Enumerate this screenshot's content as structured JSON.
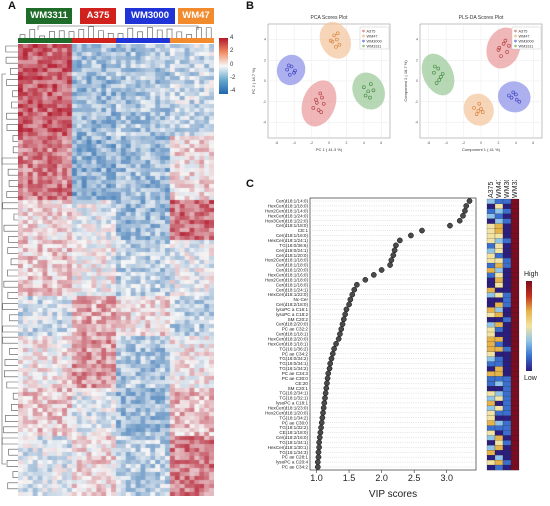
{
  "panels": {
    "a": "A",
    "b": "B",
    "c": "C"
  },
  "heatmap": {
    "groups": [
      {
        "label": "WM3311",
        "color": "#1f6b2a"
      },
      {
        "label": "A375",
        "color": "#d0211c"
      },
      {
        "label": "WM3000",
        "color": "#1f33d6"
      },
      {
        "label": "WM47",
        "color": "#f28a2e"
      }
    ],
    "scale_ticks": [
      "4",
      "2",
      "0",
      "-2",
      "-4"
    ],
    "colors": {
      "high": "#b2182b",
      "mid": "#f7f7f7",
      "low": "#2166ac"
    }
  },
  "pca_plot": {
    "title": "PCA Scores Plot",
    "xlabel": "PC 1 ( 41.3 %)",
    "ylabel": "PC 2 ( 18.7 %)",
    "xticks": [
      "-6",
      "-4",
      "-2",
      "0",
      "2",
      "4",
      "6"
    ],
    "yticks": [
      "-4",
      "-2",
      "0",
      "2",
      "4"
    ],
    "legend": [
      "A375",
      "WM47",
      "WM3000",
      "WM3311"
    ],
    "legend_colors": [
      "#e9999a",
      "#f3c39a",
      "#8a8ee8",
      "#98c896"
    ]
  },
  "plsda_plot": {
    "title": "PLS-DA Scores Plot",
    "xlabel": "Component 1 ( 41 %)",
    "ylabel": "Component 2 ( 18.7 %)",
    "xticks": [
      "-6",
      "-4",
      "-2",
      "0",
      "2",
      "4",
      "6"
    ],
    "yticks": [
      "-4",
      "-2",
      "0",
      "2",
      "4"
    ],
    "legend": [
      "A375",
      "WM47",
      "WM3000",
      "WM3311"
    ],
    "legend_colors": [
      "#e9999a",
      "#f3c39a",
      "#8a8ee8",
      "#98c896"
    ]
  },
  "vip": {
    "column_headers": [
      "A375",
      "WM47",
      "WM3000",
      "WM3311"
    ],
    "colorbar_high": "High",
    "colorbar_low": "Low"
  },
  "chart_data": [
    {
      "type": "scatter",
      "title": "VIP scores",
      "xlabel": "VIP scores",
      "ylabel": "",
      "xlim": [
        0.9,
        3.45
      ],
      "xticks": [
        1.0,
        1.5,
        2.0,
        2.5,
        3.0
      ],
      "categories": [
        "Cer(d18:1/14:0)",
        "HexCer(d18:1/18:0)",
        "Hex2Cer(d18:1/14:0)",
        "HexCer(d18:1/24:0)",
        "Hex3Cer(d18:1/22:0)",
        "Cer(d18:1/18:0)",
        "CE:1",
        "Cer(d18:1/16:0)",
        "HexCer(d18:1/24:1)",
        "TG(16:0/36:6)",
        "Cer(d18:0/24:1)",
        "Cer(d18:1/20:0)",
        "Hex2Cer(d18:1/18:0)",
        "Cer(d18:1/18:0)",
        "Cer(d18:1/20:0)",
        "HexCer(d18:1/16:0)",
        "Hex2Cer(d18:1/18:0)",
        "Cer(d18:1/18:0)",
        "Cer(d18:1/24:1)",
        "HexCer(d18:1/22:0)",
        "Nc-Cer",
        "Cer(d18:2/18:0)",
        "lysoPC a C16:1",
        "lysoPC a C18:2",
        "SM C20:2",
        "Cer(d18:2/20:0)",
        "PC ae C32:2",
        "Cer(d18:1/18:1)",
        "HexCer(d18:2/20:0)",
        "HexCer(d18:1/18:1)",
        "TG(16:1/36:2)",
        "PC ae C34:2",
        "TG(16:0/34:2)",
        "TG(16:0/34:1)",
        "TG(16:1/34:2)",
        "PC ae C34:3",
        "PC ae C30:0",
        "CE:20",
        "SM C20:1",
        "TG(16:2/34:1)",
        "TG(18:1/32:1)",
        "lysoPC a C18:1",
        "HexCer(d18:1/23:0)",
        "Hex2Cer(d18:1/20:0)",
        "TG(18:1/34:2)",
        "PC ae C30:0",
        "TG(18:1/32:2)",
        "CE(18:1/18:0)",
        "Cer(d18:2/16:0)",
        "TG(18:1/34:1)",
        "HexCer(d18:1/30:1)",
        "TG(16:1/34:3)",
        "PC ae C28:1",
        "lysoPC a C20:4",
        "PC ae C34:2"
      ],
      "values": [
        3.35,
        3.3,
        3.28,
        3.25,
        3.2,
        3.05,
        2.62,
        2.45,
        2.28,
        2.22,
        2.2,
        2.18,
        2.15,
        2.13,
        2.0,
        1.88,
        1.75,
        1.62,
        1.58,
        1.55,
        1.52,
        1.5,
        1.46,
        1.44,
        1.42,
        1.4,
        1.38,
        1.36,
        1.34,
        1.3,
        1.27,
        1.25,
        1.23,
        1.21,
        1.2,
        1.18,
        1.17,
        1.16,
        1.15,
        1.14,
        1.13,
        1.12,
        1.11,
        1.1,
        1.09,
        1.08,
        1.07,
        1.06,
        1.05,
        1.04,
        1.04,
        1.03,
        1.03,
        1.02,
        1.02
      ]
    },
    {
      "type": "scatter",
      "title": "PCA Scores Plot",
      "xlabel": "PC 1 ( 41.3 %)",
      "ylabel": "PC 2 ( 18.7 %)",
      "xlim": [
        -7,
        7
      ],
      "ylim": [
        -5.5,
        5.5
      ],
      "series": [
        {
          "name": "A375",
          "x": [
            -1.5,
            -1.0,
            -0.6,
            -1.8,
            -1.2,
            -0.8,
            -1.4,
            -0.9
          ],
          "y": [
            -1.8,
            -1.2,
            -2.2,
            -2.6,
            -2.8,
            -1.6,
            -2.1,
            -3.0
          ]
        },
        {
          "name": "WM47",
          "x": [
            0.4,
            0.9,
            1.2,
            0.6,
            1.0,
            0.2,
            0.8
          ],
          "y": [
            3.8,
            4.0,
            3.5,
            4.4,
            4.6,
            3.9,
            3.3
          ]
        },
        {
          "name": "WM3000",
          "x": [
            -4.8,
            -4.3,
            -3.9,
            -4.5,
            -4.0,
            -4.6
          ],
          "y": [
            1.1,
            1.4,
            1.0,
            0.6,
            0.8,
            1.5
          ]
        },
        {
          "name": "WM3311",
          "x": [
            4.0,
            4.5,
            4.8,
            4.2,
            4.7,
            5.1
          ],
          "y": [
            -0.6,
            -1.0,
            -0.3,
            -1.4,
            -1.6,
            -0.9
          ]
        }
      ]
    },
    {
      "type": "scatter",
      "title": "PLS-DA Scores Plot",
      "xlabel": "Component 1 ( 41 %)",
      "ylabel": "Component 2 ( 18.7 %)",
      "xlim": [
        -7,
        7
      ],
      "ylim": [
        -5.5,
        5.5
      ],
      "series": [
        {
          "name": "A375",
          "x": [
            2.1,
            2.6,
            3.0,
            2.3,
            2.8,
            2.0,
            3.2
          ],
          "y": [
            3.2,
            3.6,
            2.8,
            2.4,
            3.9,
            3.0,
            3.4
          ]
        },
        {
          "name": "WM47",
          "x": [
            -0.8,
            -0.2,
            0.2,
            -0.5,
            0.0,
            -0.3
          ],
          "y": [
            -2.6,
            -2.2,
            -3.0,
            -3.2,
            -2.7,
            -2.9
          ]
        },
        {
          "name": "WM3000",
          "x": [
            3.2,
            3.7,
            4.1,
            3.5,
            4.0,
            4.4
          ],
          "y": [
            -1.4,
            -1.1,
            -1.8,
            -1.6,
            -1.3,
            -2.0
          ]
        },
        {
          "name": "WM3311",
          "x": [
            -5.4,
            -4.9,
            -4.6,
            -5.1,
            -4.8,
            -5.3,
            -4.4
          ],
          "y": [
            0.8,
            1.2,
            0.4,
            -0.2,
            0.1,
            1.4,
            0.7
          ]
        }
      ]
    }
  ]
}
